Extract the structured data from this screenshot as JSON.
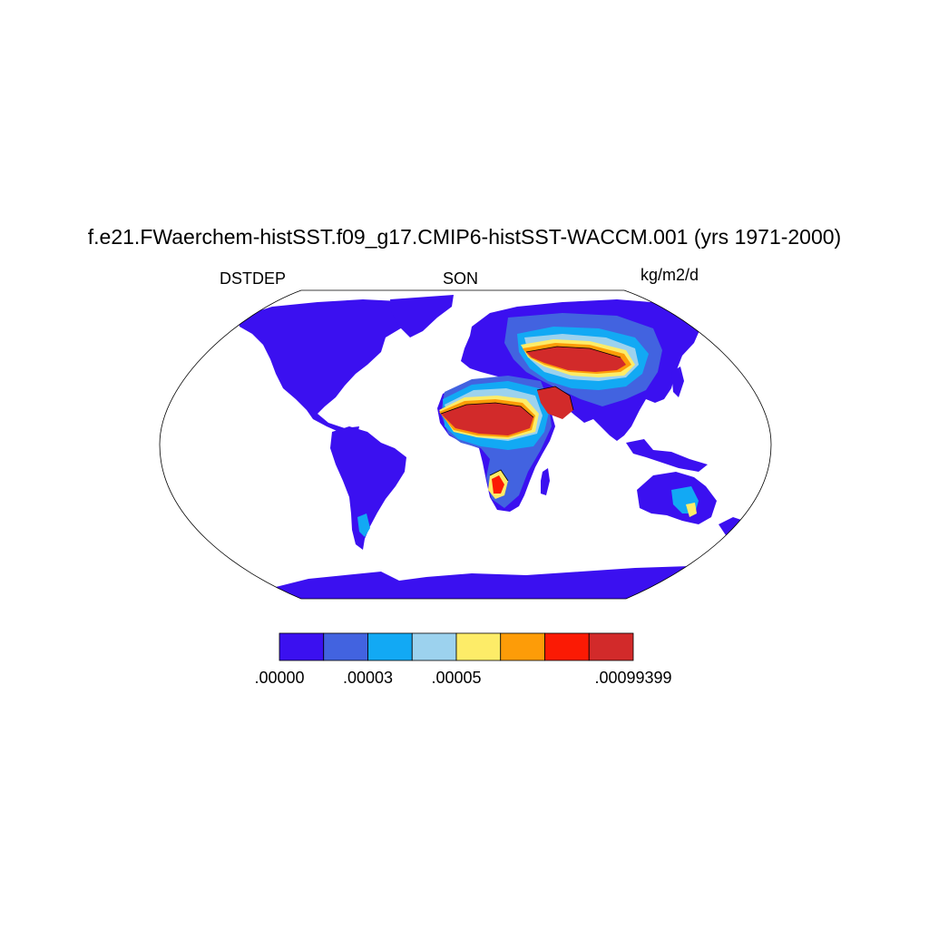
{
  "title": "f.e21.FWaerchem-histSST.f09_g17.CMIP6-histSST-WACCM.001 (yrs 1971-2000)",
  "left_string": "DSTDEP",
  "center_string": "SON",
  "right_string": "kg/m2/d",
  "map": {
    "projection": "Robinson (global)",
    "field": "dust deposition",
    "land_masked": true,
    "coastlines": true,
    "high_regions": [
      "Sahara",
      "Arabian Peninsula",
      "Taklimakan",
      "Gobi",
      "Kalahari",
      "Australian interior"
    ]
  },
  "colorbar": {
    "colors": [
      "#3b10f0",
      "#4263e0",
      "#12a9f4",
      "#9cd2ee",
      "#fdec68",
      "#fd9c08",
      "#fb1a04",
      "#d22a2a"
    ],
    "tick_labels": [
      ".00000",
      ".00003",
      ".00005",
      ".00099399"
    ],
    "tick_boundary_index": [
      0,
      2,
      4,
      7
    ]
  }
}
